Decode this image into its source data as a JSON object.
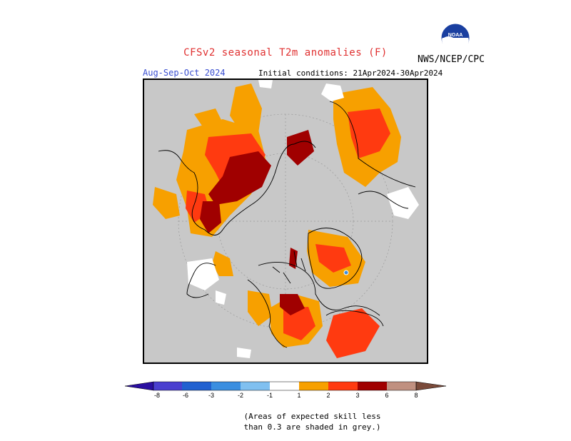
{
  "header": {
    "title": "CFSv2 seasonal T2m anomalies (F)",
    "season": "Aug-Sep-Oct 2024",
    "initial_conditions": "Initial conditions: 21Apr2024-30Apr2024",
    "agency": "NWS/NCEP/CPC",
    "logo_text": "NOAA"
  },
  "legend": {
    "ticks": [
      "-8",
      "-6",
      "-3",
      "-2",
      "-1",
      "1",
      "2",
      "3",
      "6",
      "8"
    ],
    "colors": {
      "lt_-8": "#2a0fa0",
      "-8_-6": "#4a3fcf",
      "-6_-3": "#2060d0",
      "-3_-2": "#3a8ee0",
      "-2_-1": "#80c0f0",
      "-1_1": "#ffffff",
      "1_2": "#f7a000",
      "2_3": "#ff3a10",
      "3_6": "#a00000",
      "6_8": "#c09080",
      "gt_8": "#7a4a3a"
    }
  },
  "map": {
    "grey_color": "#c8c8c8",
    "land_outline": "#000000"
  },
  "note": {
    "line1": "(Areas of expected skill less",
    "line2": "than 0.3 are shaded in grey.)"
  }
}
